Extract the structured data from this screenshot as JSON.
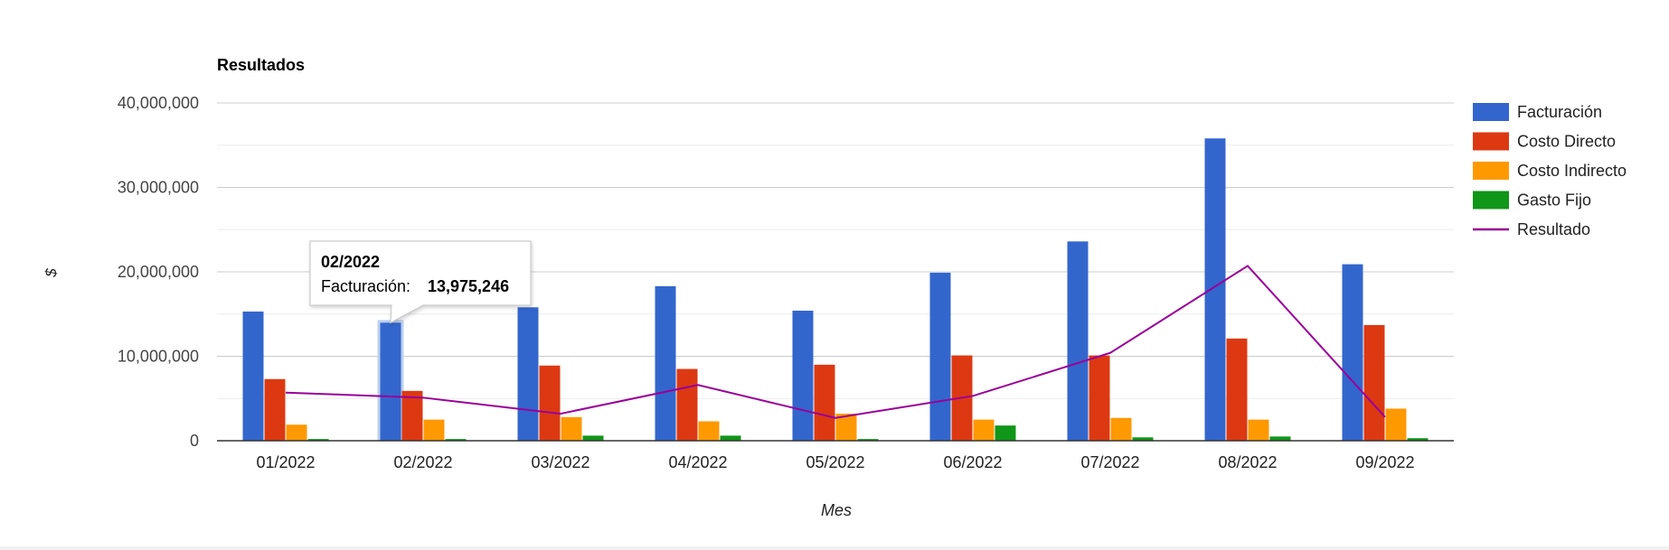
{
  "chart_data": {
    "type": "bar",
    "title": "Resultados",
    "xlabel": "Mes",
    "ylabel": "$",
    "ylim": [
      0,
      40000000
    ],
    "yticks": [
      0,
      10000000,
      20000000,
      30000000,
      40000000
    ],
    "ytick_labels": [
      "0",
      "10,000,000",
      "20,000,000",
      "30,000,000",
      "40,000,000"
    ],
    "grid": true,
    "legend_position": "right",
    "categories": [
      "01/2022",
      "02/2022",
      "03/2022",
      "04/2022",
      "05/2022",
      "06/2022",
      "07/2022",
      "08/2022",
      "09/2022"
    ],
    "series": [
      {
        "name": "Facturación",
        "kind": "bar",
        "color": "#3366cc",
        "values": [
          15300000,
          13975246,
          15800000,
          18300000,
          15400000,
          19900000,
          23600000,
          35800000,
          20900000
        ]
      },
      {
        "name": "Costo Directo",
        "kind": "bar",
        "color": "#dc3912",
        "values": [
          7300000,
          5900000,
          8900000,
          8500000,
          9000000,
          10100000,
          10100000,
          12100000,
          13700000
        ]
      },
      {
        "name": "Costo Indirecto",
        "kind": "bar",
        "color": "#ff9900",
        "values": [
          1900000,
          2500000,
          2800000,
          2300000,
          3200000,
          2500000,
          2700000,
          2500000,
          3800000
        ]
      },
      {
        "name": "Gasto Fijo",
        "kind": "bar",
        "color": "#109618",
        "values": [
          200000,
          200000,
          600000,
          600000,
          200000,
          1800000,
          400000,
          500000,
          300000
        ]
      },
      {
        "name": "Resultado",
        "kind": "line",
        "color": "#990099",
        "values": [
          5700000,
          5100000,
          3200000,
          6600000,
          2700000,
          5300000,
          10400000,
          20700000,
          2800000
        ]
      }
    ],
    "tooltip": {
      "category_index": 1,
      "title": "02/2022",
      "label": "Facturación:",
      "value": "13,975,246"
    }
  }
}
